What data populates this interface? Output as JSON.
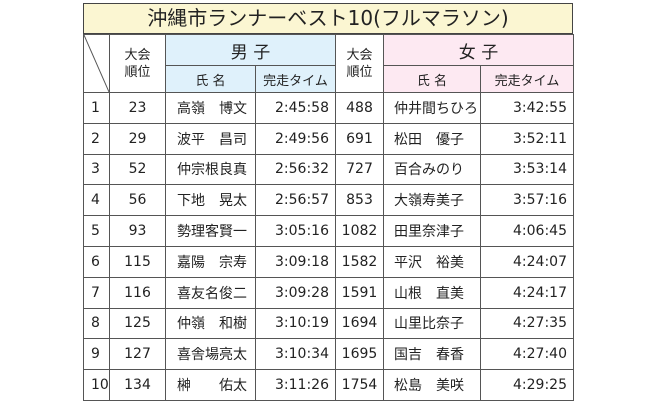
{
  "title": "沖縄市ランナーベスト10(フルマラソン)",
  "headers": {
    "rank_label": "大会\n順位",
    "male": "男 子",
    "female": "女 子",
    "name": "氏 名",
    "time": "完走タイム"
  },
  "colors": {
    "title_bg": "#fbf6d2",
    "male_bg": "#dff1fb",
    "female_bg": "#fde9f2",
    "border": "#555555"
  },
  "rows": [
    {
      "no": "1",
      "m_rank": "23",
      "m_name": "高嶺　博文",
      "m_time": "2:45:58",
      "f_rank": "488",
      "f_name": "仲井間ちひろ",
      "f_time": "3:42:55"
    },
    {
      "no": "2",
      "m_rank": "29",
      "m_name": "波平　昌司",
      "m_time": "2:49:56",
      "f_rank": "691",
      "f_name": "松田　優子",
      "f_time": "3:52:11"
    },
    {
      "no": "3",
      "m_rank": "52",
      "m_name": "仲宗根良真",
      "m_time": "2:56:32",
      "f_rank": "727",
      "f_name": "百合みのり",
      "f_time": "3:53:14"
    },
    {
      "no": "4",
      "m_rank": "56",
      "m_name": "下地　晃太",
      "m_time": "2:56:57",
      "f_rank": "853",
      "f_name": "大嶺寿美子",
      "f_time": "3:57:16"
    },
    {
      "no": "5",
      "m_rank": "93",
      "m_name": "勢理客賢一",
      "m_time": "3:05:16",
      "f_rank": "1082",
      "f_name": "田里奈津子",
      "f_time": "4:06:45"
    },
    {
      "no": "6",
      "m_rank": "115",
      "m_name": "嘉陽　宗寿",
      "m_time": "3:09:18",
      "f_rank": "1582",
      "f_name": "平沢　裕美",
      "f_time": "4:24:07"
    },
    {
      "no": "7",
      "m_rank": "116",
      "m_name": "喜友名俊二",
      "m_time": "3:09:28",
      "f_rank": "1591",
      "f_name": "山根　直美",
      "f_time": "4:24:17"
    },
    {
      "no": "8",
      "m_rank": "125",
      "m_name": "仲嶺　和樹",
      "m_time": "3:10:19",
      "f_rank": "1694",
      "f_name": "山里比奈子",
      "f_time": "4:27:35"
    },
    {
      "no": "9",
      "m_rank": "127",
      "m_name": "喜舎場亮太",
      "m_time": "3:10:34",
      "f_rank": "1695",
      "f_name": "国吉　春香",
      "f_time": "4:27:40"
    },
    {
      "no": "10",
      "m_rank": "134",
      "m_name": "榊　　佑太",
      "m_time": "3:11:26",
      "f_rank": "1754",
      "f_name": "松島　美咲",
      "f_time": "4:29:25"
    }
  ]
}
